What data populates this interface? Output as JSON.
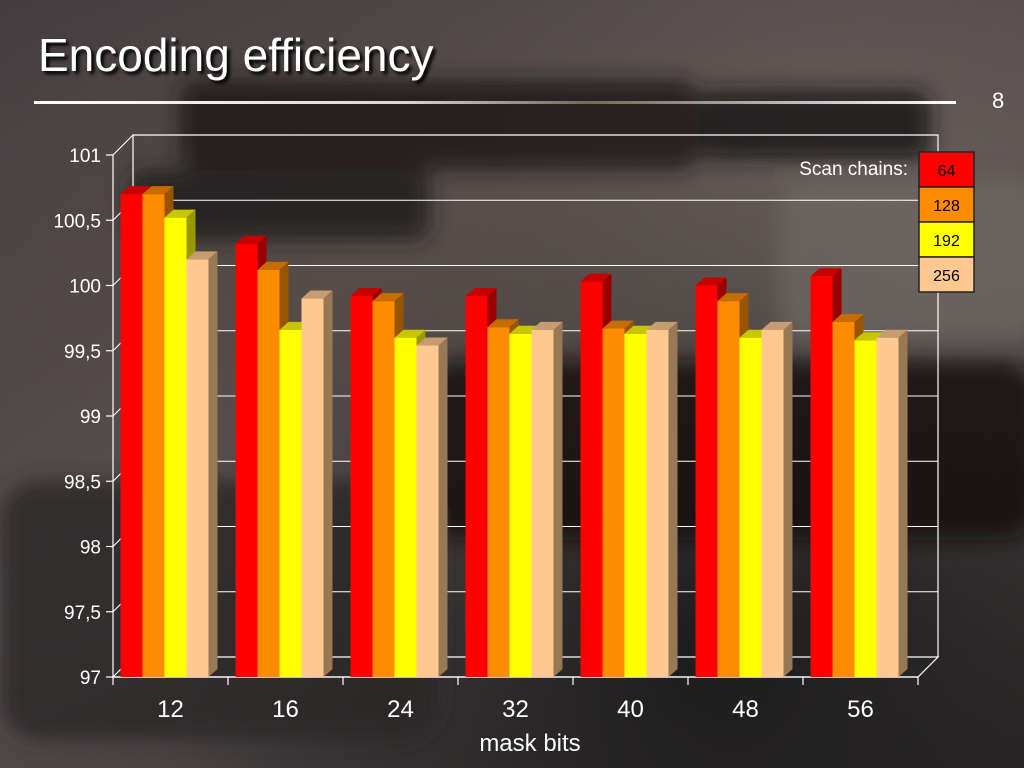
{
  "slide": {
    "title": "Encoding efficiency",
    "number": "8"
  },
  "chart_data": {
    "type": "bar",
    "title": "",
    "xlabel": "mask bits",
    "ylabel": "",
    "categories": [
      "12",
      "16",
      "24",
      "32",
      "40",
      "48",
      "56"
    ],
    "ylim": [
      97,
      101
    ],
    "y_ticks": [
      97,
      97.5,
      98,
      98.5,
      99,
      99.5,
      100,
      100.5,
      101
    ],
    "y_tick_labels": [
      "97",
      "97,5",
      "98",
      "98,5",
      "99",
      "99,5",
      "100",
      "100,5",
      "101"
    ],
    "grid": true,
    "three_d": true,
    "legend": {
      "title": "Scan chains:",
      "position": "top-right"
    },
    "series": [
      {
        "name": "64",
        "color": "#ff0000",
        "values": [
          100.7,
          100.32,
          99.92,
          99.92,
          100.03,
          100.0,
          100.07
        ]
      },
      {
        "name": "128",
        "color": "#ff8c00",
        "values": [
          100.7,
          100.12,
          99.88,
          99.68,
          99.67,
          99.88,
          99.72
        ]
      },
      {
        "name": "192",
        "color": "#ffff00",
        "values": [
          100.52,
          99.66,
          99.6,
          99.63,
          99.63,
          99.6,
          99.58
        ]
      },
      {
        "name": "256",
        "color": "#ffc890",
        "values": [
          100.2,
          99.9,
          99.54,
          99.66,
          99.66,
          99.66,
          99.6
        ]
      }
    ]
  }
}
